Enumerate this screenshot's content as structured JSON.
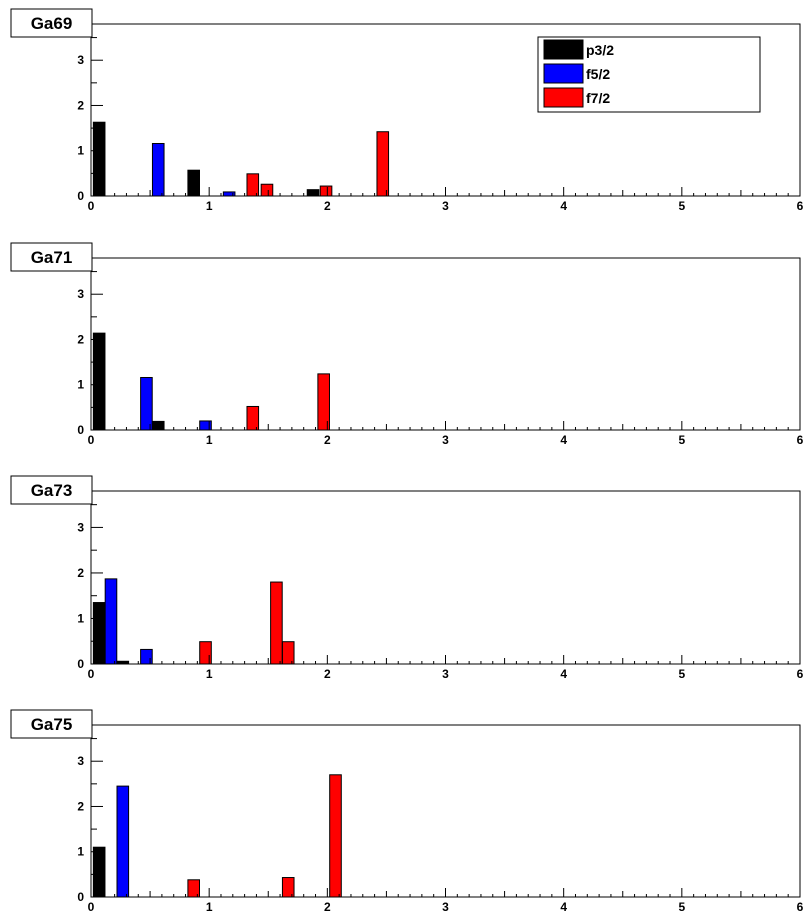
{
  "chart_data": [
    {
      "type": "bar",
      "title": "Ga69",
      "xlim": [
        0,
        6
      ],
      "ylim": [
        0,
        3.8
      ],
      "xticks": [
        "0",
        "1",
        "2",
        "3",
        "4",
        "5",
        "6"
      ],
      "yticks": [
        "0",
        "1",
        "2",
        "3"
      ],
      "legend": {
        "placement": "top-right",
        "shown": true
      },
      "series": [
        {
          "name": "p3/2",
          "color": "#000000",
          "points": [
            {
              "x": 0.02,
              "y": 1.63
            },
            {
              "x": 0.82,
              "y": 0.57
            },
            {
              "x": 1.83,
              "y": 0.14
            }
          ]
        },
        {
          "name": "f5/2",
          "color": "#0000ff",
          "points": [
            {
              "x": 0.52,
              "y": 1.16
            },
            {
              "x": 1.12,
              "y": 0.09
            }
          ]
        },
        {
          "name": "f7/2",
          "color": "#ff0000",
          "points": [
            {
              "x": 1.32,
              "y": 0.49
            },
            {
              "x": 1.44,
              "y": 0.26
            },
            {
              "x": 1.94,
              "y": 0.22
            },
            {
              "x": 2.42,
              "y": 1.42
            }
          ]
        }
      ]
    },
    {
      "type": "bar",
      "title": "Ga71",
      "xlim": [
        0,
        6
      ],
      "ylim": [
        0,
        3.8
      ],
      "xticks": [
        "0",
        "1",
        "2",
        "3",
        "4",
        "5",
        "6"
      ],
      "yticks": [
        "0",
        "1",
        "2",
        "3"
      ],
      "series": [
        {
          "name": "p3/2",
          "color": "#000000",
          "points": [
            {
              "x": 0.02,
              "y": 2.14
            },
            {
              "x": 0.52,
              "y": 0.19
            }
          ]
        },
        {
          "name": "f5/2",
          "color": "#0000ff",
          "points": [
            {
              "x": 0.42,
              "y": 1.16
            },
            {
              "x": 0.92,
              "y": 0.2
            }
          ]
        },
        {
          "name": "f7/2",
          "color": "#ff0000",
          "points": [
            {
              "x": 1.32,
              "y": 0.52
            },
            {
              "x": 1.92,
              "y": 1.24
            }
          ]
        }
      ]
    },
    {
      "type": "bar",
      "title": "Ga73",
      "xlim": [
        0,
        6
      ],
      "ylim": [
        0,
        3.8
      ],
      "xticks": [
        "0",
        "1",
        "2",
        "3",
        "4",
        "5",
        "6"
      ],
      "yticks": [
        "0",
        "1",
        "2",
        "3"
      ],
      "series": [
        {
          "name": "p3/2",
          "color": "#000000",
          "points": [
            {
              "x": 0.02,
              "y": 1.35
            },
            {
              "x": 0.22,
              "y": 0.06
            }
          ]
        },
        {
          "name": "f5/2",
          "color": "#0000ff",
          "points": [
            {
              "x": 0.12,
              "y": 1.87
            },
            {
              "x": 0.42,
              "y": 0.32
            }
          ]
        },
        {
          "name": "f7/2",
          "color": "#ff0000",
          "points": [
            {
              "x": 0.92,
              "y": 0.49
            },
            {
              "x": 1.52,
              "y": 1.8
            },
            {
              "x": 1.62,
              "y": 0.49
            }
          ]
        }
      ]
    },
    {
      "type": "bar",
      "title": "Ga75",
      "xlim": [
        0,
        6
      ],
      "ylim": [
        0,
        3.8
      ],
      "xticks": [
        "0",
        "1",
        "2",
        "3",
        "4",
        "5",
        "6"
      ],
      "yticks": [
        "0",
        "1",
        "2",
        "3"
      ],
      "series": [
        {
          "name": "p3/2",
          "color": "#000000",
          "points": [
            {
              "x": 0.02,
              "y": 1.1
            }
          ]
        },
        {
          "name": "f5/2",
          "color": "#0000ff",
          "points": [
            {
              "x": 0.22,
              "y": 2.45
            }
          ]
        },
        {
          "name": "f7/2",
          "color": "#ff0000",
          "points": [
            {
              "x": 0.82,
              "y": 0.38
            },
            {
              "x": 1.62,
              "y": 0.43
            },
            {
              "x": 2.02,
              "y": 2.7
            }
          ]
        }
      ]
    }
  ]
}
